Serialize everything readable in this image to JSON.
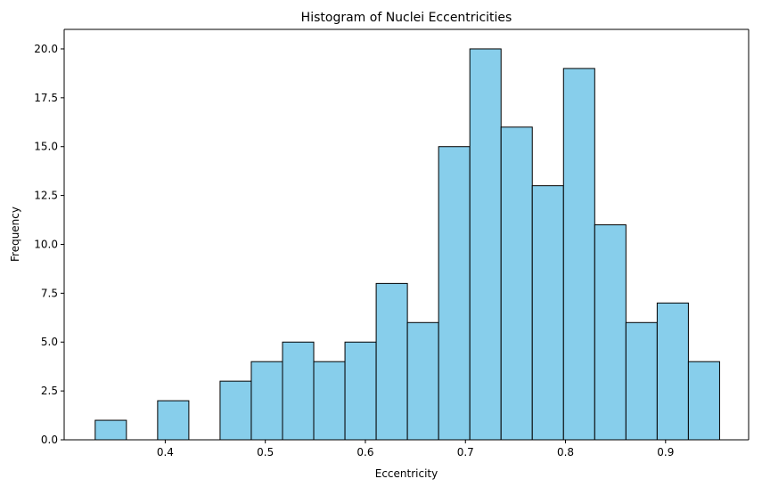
{
  "chart_data": {
    "type": "bar",
    "title": "Histogram of Nuclei Eccentricities",
    "xlabel": "Eccentricity",
    "ylabel": "Frequency",
    "xlim": [
      0.299,
      0.983
    ],
    "ylim": [
      0,
      21
    ],
    "bin_edges": [
      0.33,
      0.3612,
      0.3924,
      0.4236,
      0.4548,
      0.486,
      0.5172,
      0.5484,
      0.5796,
      0.6108,
      0.642,
      0.6732,
      0.7044,
      0.7356,
      0.7668,
      0.798,
      0.8292,
      0.8604,
      0.8916,
      0.9228,
      0.954
    ],
    "values": [
      1,
      0,
      2,
      0,
      3,
      4,
      5,
      4,
      5,
      8,
      6,
      15,
      20,
      16,
      13,
      19,
      11,
      6,
      7,
      4
    ],
    "xticks": [
      0.4,
      0.5,
      0.6,
      0.7,
      0.8,
      0.9
    ],
    "xtick_labels": [
      "0.4",
      "0.5",
      "0.6",
      "0.7",
      "0.8",
      "0.9"
    ],
    "yticks": [
      0,
      2.5,
      5,
      7.5,
      10,
      12.5,
      15,
      17.5,
      20
    ],
    "ytick_labels": [
      "0.0",
      "2.5",
      "5.0",
      "7.5",
      "10.0",
      "12.5",
      "15.0",
      "17.5",
      "20.0"
    ],
    "bar_color": "#87ceeb",
    "edge_color": "#000000",
    "grid": false
  }
}
